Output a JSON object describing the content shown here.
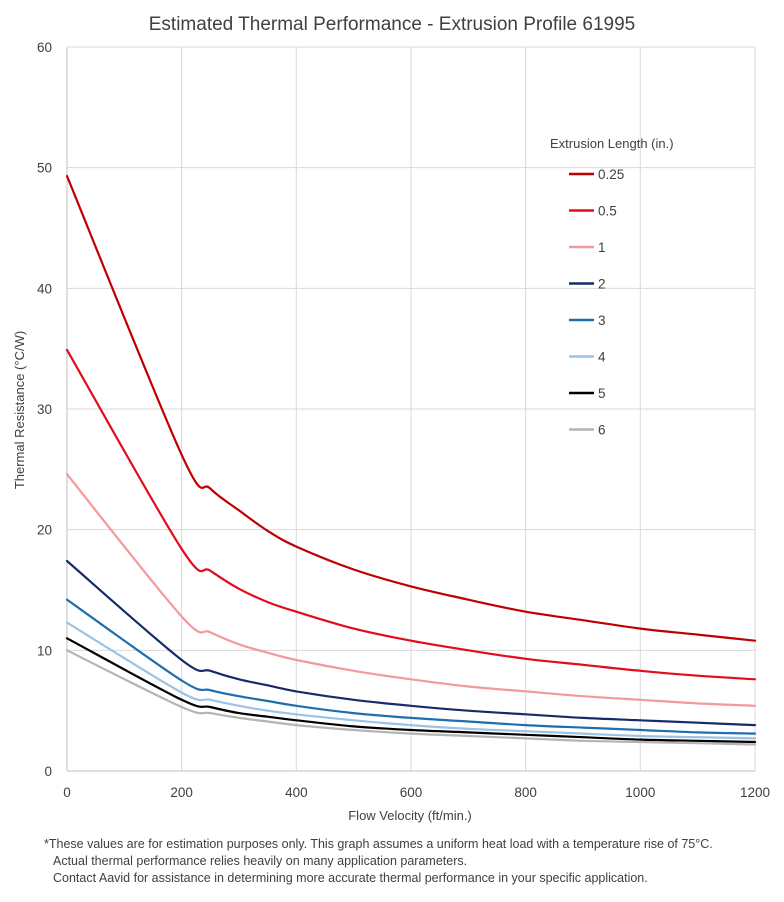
{
  "chart_data": {
    "type": "line",
    "title": "Estimated Thermal Performance - Extrusion Profile 61995",
    "xlabel": "Flow Velocity (ft/min.)",
    "ylabel": "Thermal Resistance (°C/W)",
    "xlim": [
      0,
      1200
    ],
    "ylim": [
      0,
      60
    ],
    "x_ticks": [
      "0",
      "200",
      "400",
      "600",
      "800",
      "1000",
      "1200"
    ],
    "y_ticks": [
      "0",
      "10",
      "20",
      "30",
      "40",
      "50",
      "60"
    ],
    "grid": "vertical and horizontal major gridlines",
    "legend_title": "Extrusion Length (in.)",
    "legend_position": "right",
    "x": [
      0,
      200,
      250,
      300,
      350,
      400,
      500,
      600,
      700,
      800,
      900,
      1000,
      1100,
      1200
    ],
    "series": [
      {
        "name": "0.25",
        "color": "#c00000",
        "values": [
          49.3,
          26.2,
          23.4,
          21.6,
          19.9,
          18.6,
          16.7,
          15.3,
          14.2,
          13.2,
          12.5,
          11.8,
          11.3,
          10.8
        ]
      },
      {
        "name": "0.5",
        "color": "#e30b1c",
        "values": [
          34.9,
          18.4,
          16.6,
          15.1,
          14.0,
          13.2,
          11.8,
          10.8,
          10.0,
          9.3,
          8.8,
          8.3,
          7.9,
          7.6
        ]
      },
      {
        "name": "1",
        "color": "#f4999b",
        "values": [
          24.6,
          12.8,
          11.5,
          10.5,
          9.8,
          9.2,
          8.3,
          7.6,
          7.0,
          6.6,
          6.2,
          5.9,
          5.6,
          5.4
        ]
      },
      {
        "name": "2",
        "color": "#172b6b",
        "values": [
          17.4,
          9.2,
          8.3,
          7.6,
          7.1,
          6.6,
          5.9,
          5.4,
          5.0,
          4.7,
          4.4,
          4.2,
          4.0,
          3.8
        ]
      },
      {
        "name": "3",
        "color": "#1f6fae",
        "values": [
          14.2,
          7.5,
          6.7,
          6.2,
          5.8,
          5.4,
          4.8,
          4.4,
          4.1,
          3.8,
          3.6,
          3.4,
          3.2,
          3.1
        ]
      },
      {
        "name": "4",
        "color": "#9cc2e5",
        "values": [
          12.3,
          6.5,
          5.9,
          5.4,
          5.0,
          4.7,
          4.2,
          3.8,
          3.5,
          3.3,
          3.1,
          2.9,
          2.8,
          2.7
        ]
      },
      {
        "name": "5",
        "color": "#000000",
        "values": [
          11.0,
          5.9,
          5.3,
          4.8,
          4.5,
          4.2,
          3.7,
          3.4,
          3.2,
          3.0,
          2.8,
          2.6,
          2.5,
          2.4
        ]
      },
      {
        "name": "6",
        "color": "#b4b4b4",
        "values": [
          10.0,
          5.3,
          4.8,
          4.4,
          4.1,
          3.8,
          3.4,
          3.1,
          2.9,
          2.7,
          2.5,
          2.4,
          2.3,
          2.2
        ]
      }
    ]
  },
  "footnote": {
    "line1": "*These values are for estimation purposes only. This graph assumes a uniform heat load with a temperature rise of 75°C.",
    "line2": "Actual thermal performance relies heavily on many application parameters.",
    "line3": "Contact Aavid for assistance in determining more accurate thermal performance in your specific application."
  }
}
